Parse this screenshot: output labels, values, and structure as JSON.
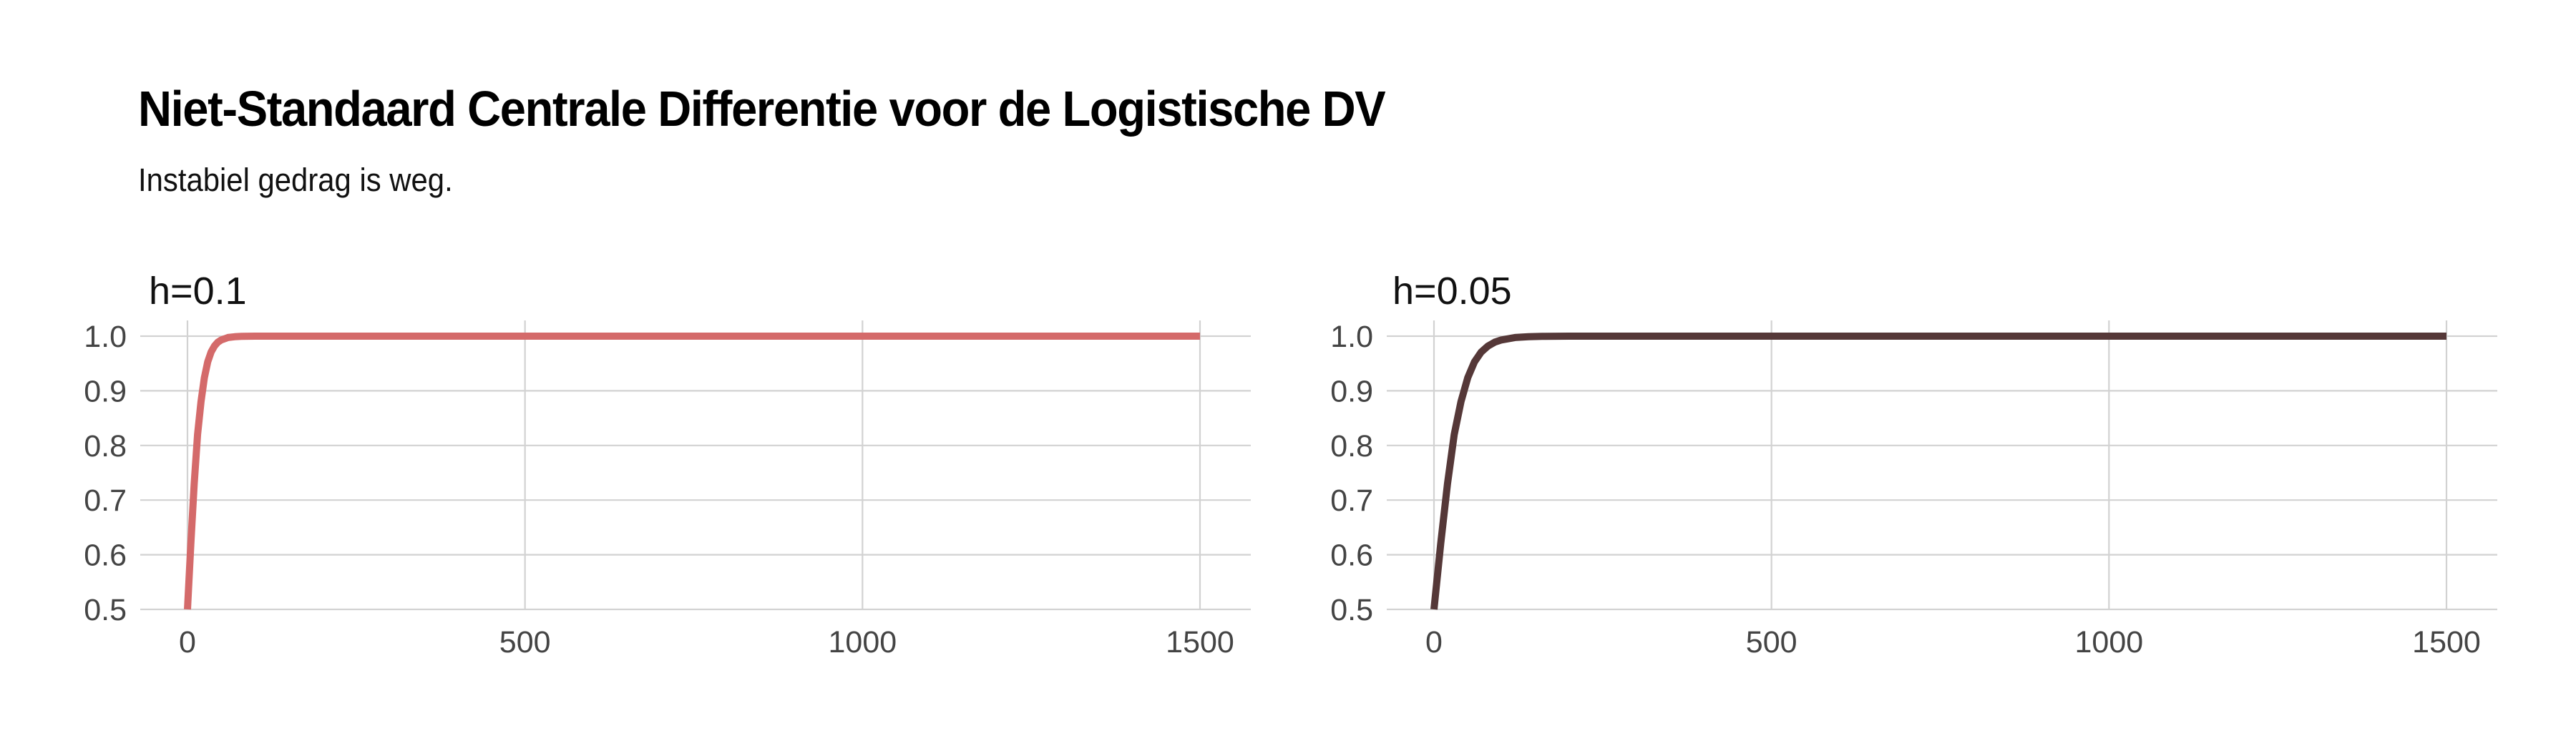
{
  "title": "Niet-Standaard Centrale Differentie voor de Logistische DV",
  "subtitle": "Instabiel gedrag is weg.",
  "chart_data": [
    {
      "type": "line",
      "title": "h=0.1",
      "xlabel": "",
      "ylabel": "",
      "xlim": [
        0,
        1500
      ],
      "ylim": [
        0.5,
        1.0
      ],
      "x_ticks": [
        0,
        500,
        1000,
        1500
      ],
      "y_ticks": [
        0.5,
        0.6,
        0.7,
        0.8,
        0.9,
        1.0
      ],
      "grid": true,
      "color": "#d46a6a",
      "series": [
        {
          "x": [
            0,
            5,
            10,
            15,
            20,
            25,
            30,
            35,
            40,
            45,
            50,
            60,
            70,
            80,
            90,
            100,
            120,
            150,
            200,
            300,
            500,
            750,
            1000,
            1250,
            1500
          ],
          "values": [
            0.5,
            0.62,
            0.73,
            0.82,
            0.88,
            0.924,
            0.953,
            0.971,
            0.982,
            0.989,
            0.993,
            0.9975,
            0.999,
            0.9996,
            0.9999,
            1.0,
            1.0,
            1.0,
            1.0,
            1.0,
            1.0,
            1.0,
            1.0,
            1.0,
            1.0
          ]
        }
      ]
    },
    {
      "type": "line",
      "title": "h=0.05",
      "xlabel": "",
      "ylabel": "",
      "xlim": [
        0,
        1500
      ],
      "ylim": [
        0.5,
        1.0
      ],
      "x_ticks": [
        0,
        500,
        1000,
        1500
      ],
      "y_ticks": [
        0.5,
        0.6,
        0.7,
        0.8,
        0.9,
        1.0
      ],
      "grid": true,
      "color": "#553838",
      "series": [
        {
          "x": [
            0,
            10,
            20,
            30,
            40,
            50,
            60,
            70,
            80,
            90,
            100,
            120,
            140,
            160,
            200,
            300,
            500,
            750,
            1000,
            1250,
            1500
          ],
          "values": [
            0.5,
            0.62,
            0.73,
            0.82,
            0.88,
            0.924,
            0.953,
            0.971,
            0.982,
            0.989,
            0.993,
            0.9975,
            0.999,
            0.9996,
            1.0,
            1.0,
            1.0,
            1.0,
            1.0,
            1.0,
            1.0
          ]
        }
      ]
    }
  ]
}
